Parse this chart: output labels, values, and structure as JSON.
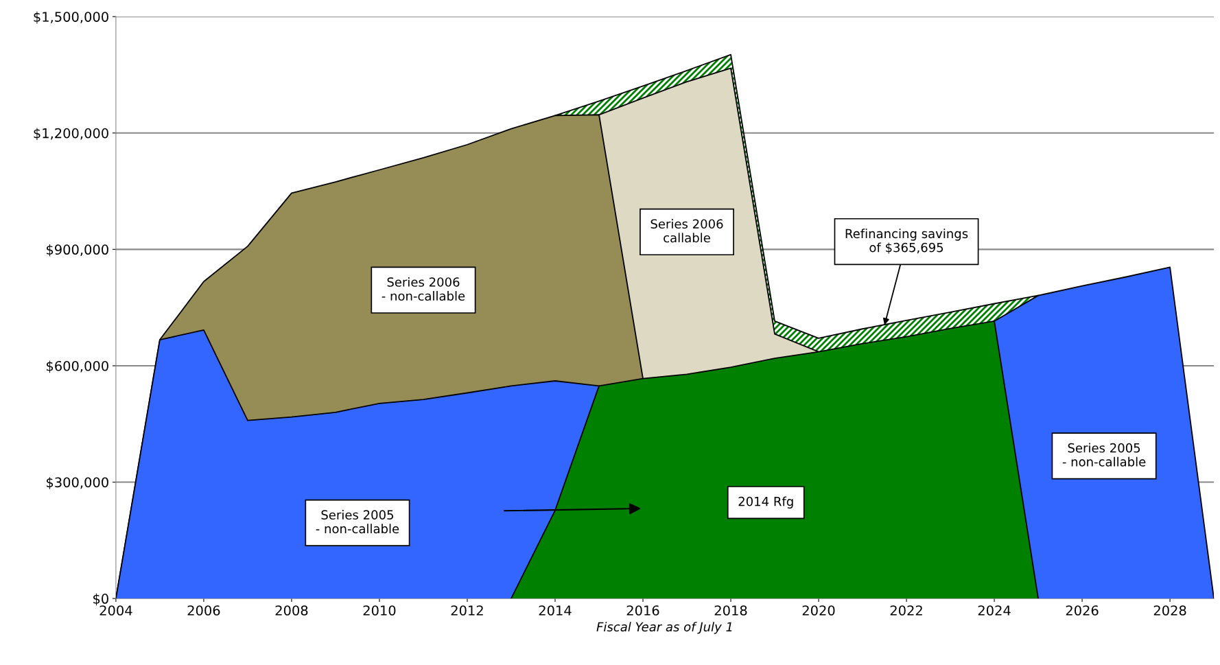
{
  "chart_data": {
    "type": "area",
    "xlabel": "Fiscal Year as of July 1",
    "x": [
      2004,
      2005,
      2006,
      2007,
      2008,
      2009,
      2010,
      2011,
      2012,
      2013,
      2014,
      2015,
      2016,
      2017,
      2018,
      2019,
      2020,
      2021,
      2022,
      2023,
      2024,
      2025,
      2026,
      2027,
      2028,
      2029
    ],
    "series": [
      {
        "color": "#008000",
        "values": [
          null,
          null,
          null,
          null,
          null,
          null,
          null,
          null,
          null,
          null,
          1245000,
          1282000,
          1321000,
          1361000,
          1402000,
          715000,
          671000,
          695000,
          717000,
          738000,
          760000,
          781000,
          null,
          null,
          null,
          null
        ]
      },
      {
        "name": "Series 2006\ncallable",
        "color": "#ddd9c3",
        "values": [
          null,
          null,
          null,
          null,
          null,
          null,
          null,
          null,
          null,
          null,
          null,
          1247000,
          1290000,
          1332000,
          1367000,
          682000,
          636000,
          null,
          null,
          null,
          null,
          null,
          null,
          null,
          null,
          null
        ]
      },
      {
        "name": "Series 2006\n- non-callable",
        "color": "#968c56",
        "values": [
          0,
          667000,
          817000,
          908000,
          1045000,
          1074000,
          1105000,
          1136000,
          1170000,
          1211000,
          1245000,
          1247000,
          567000,
          null,
          null,
          null,
          null,
          null,
          null,
          null,
          null,
          null,
          null,
          null,
          null,
          null
        ]
      },
      {
        "name": "Series 2005\n- non-callable",
        "color": "#3366ff",
        "values": [
          0,
          667000,
          692000,
          459000,
          468000,
          480000,
          503000,
          513000,
          530000,
          548000,
          561000,
          548000,
          null,
          null,
          null,
          null,
          null,
          null,
          null,
          null,
          715000,
          781000,
          806000,
          829000,
          854000,
          0
        ]
      },
      {
        "name": "2014 Rfg",
        "color": "#008000",
        "values": [
          null,
          null,
          null,
          null,
          null,
          null,
          null,
          null,
          null,
          0,
          227000,
          548000,
          567000,
          578000,
          596000,
          619000,
          636000,
          657000,
          675000,
          696000,
          715000,
          0,
          null,
          null,
          null,
          null
        ]
      }
    ],
    "xlim": [
      2004,
      2029
    ],
    "xticks": [
      2004,
      2006,
      2008,
      2010,
      2012,
      2014,
      2016,
      2018,
      2020,
      2022,
      2024,
      2026,
      2028
    ],
    "ylim": [
      0,
      1500000
    ],
    "yticks": [
      {
        "value": 0,
        "label": "$0"
      },
      {
        "value": 300000,
        "label": "$300,000"
      },
      {
        "value": 600000,
        "label": "$600,000"
      },
      {
        "value": 900000,
        "label": "$900,000"
      },
      {
        "value": 1200000,
        "label": "$1,200,000"
      },
      {
        "value": 1500000,
        "label": "$1,500,000"
      }
    ],
    "grid": "y",
    "annotations": [
      {
        "text": "Refinancing savings\nof $365,695",
        "x": 2021.5,
        "y": 705000
      }
    ]
  }
}
